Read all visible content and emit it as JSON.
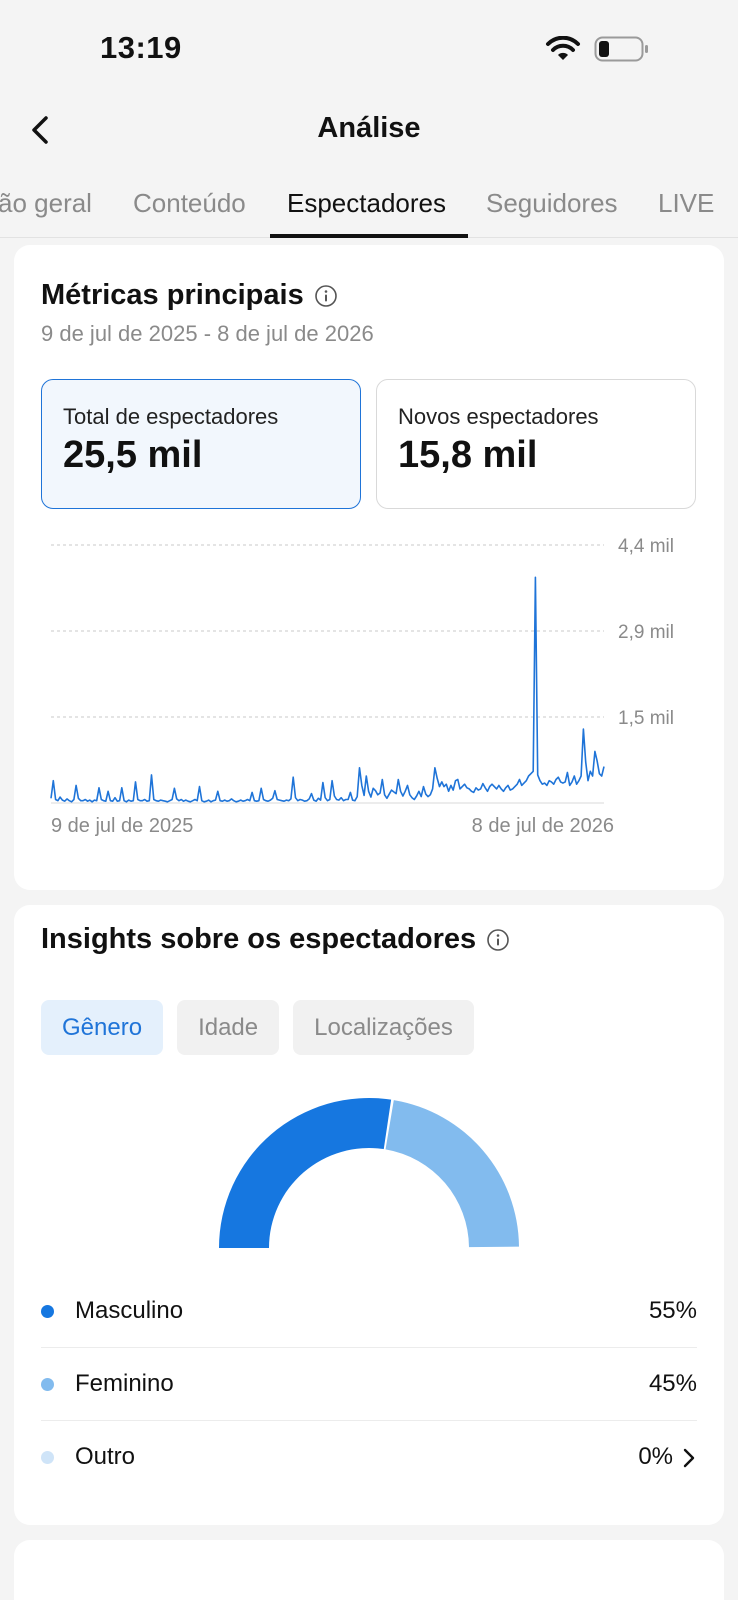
{
  "status_bar": {
    "time": "13:19"
  },
  "header": {
    "title": "Análise"
  },
  "tabs": [
    {
      "label": "ão geral"
    },
    {
      "label": "Conteúdo"
    },
    {
      "label": "Espectadores"
    },
    {
      "label": "Seguidores"
    },
    {
      "label": "LIVE"
    }
  ],
  "metrics": {
    "title": "Métricas principais",
    "date_range": "9 de jul de 2025 - 8 de jul de 2026",
    "total": {
      "label": "Total de espectadores",
      "value": "25,5 mil"
    },
    "new": {
      "label": "Novos espectadores",
      "value": "15,8 mil"
    }
  },
  "chart_data": {
    "type": "line",
    "title": "",
    "series": [
      {
        "color": "#1f74d8",
        "values": [
          80,
          380,
          60,
          40,
          100,
          50,
          30,
          70,
          40,
          20,
          60,
          300,
          80,
          40,
          40,
          60,
          30,
          50,
          20,
          50,
          40,
          260,
          60,
          40,
          30,
          200,
          40,
          30,
          90,
          30,
          40,
          260,
          40,
          20,
          50,
          30,
          40,
          360,
          60,
          40,
          40,
          60,
          30,
          40,
          480,
          60,
          40,
          30,
          50,
          40,
          30,
          20,
          40,
          60,
          250,
          70,
          40,
          60,
          30,
          50,
          30,
          20,
          40,
          60,
          40,
          280,
          40,
          20,
          30,
          50,
          20,
          40,
          50,
          200,
          40,
          30,
          50,
          30,
          40,
          70,
          40,
          20,
          30,
          50,
          30,
          40,
          60,
          40,
          180,
          40,
          30,
          40,
          250,
          60,
          40,
          30,
          50,
          80,
          210,
          60,
          50,
          40,
          30,
          50,
          40,
          70,
          440,
          90,
          40,
          60,
          50,
          30,
          40,
          70,
          160,
          50,
          30,
          80,
          50,
          350,
          90,
          40,
          60,
          380,
          120,
          60,
          50,
          90,
          40,
          60,
          60,
          180,
          50,
          40,
          110,
          600,
          300,
          130,
          460,
          200,
          100,
          250,
          210,
          140,
          170,
          400,
          140,
          80,
          150,
          220,
          190,
          160,
          400,
          200,
          120,
          200,
          300,
          140,
          90,
          60,
          120,
          200,
          110,
          280,
          150,
          110,
          140,
          240,
          600,
          420,
          280,
          360,
          280,
          320,
          200,
          300,
          220,
          380,
          400,
          240,
          280,
          320,
          260,
          240,
          200,
          180,
          260,
          220,
          240,
          330,
          260,
          200,
          280,
          320,
          280,
          240,
          300,
          240,
          200,
          260,
          300,
          220,
          240,
          280,
          320,
          400,
          300,
          340,
          380,
          460,
          500,
          540,
          3850,
          480,
          380,
          320,
          340,
          300,
          380,
          360,
          320,
          400,
          440,
          360,
          340,
          360,
          520,
          300,
          360,
          460,
          320,
          380,
          460,
          1260,
          700,
          380,
          540,
          460,
          880,
          720,
          500,
          460,
          620
        ],
        "min": 0,
        "max": 4400
      }
    ],
    "y_ticks": [
      "4,4 mil",
      "2,9 mil",
      "1,5 mil"
    ],
    "y_tick_values": [
      4400,
      2900,
      1500
    ],
    "x_labels": [
      "9 de jul de 2025",
      "8 de jul de 2026"
    ],
    "grid": "horizontal-dashed"
  },
  "insights": {
    "title": "Insights sobre os espectadores",
    "filters": [
      {
        "label": "Gênero"
      },
      {
        "label": "Idade"
      },
      {
        "label": "Localizações"
      }
    ],
    "gender_chart": {
      "type": "pie",
      "slices": [
        {
          "label": "Masculino",
          "value": 55,
          "color": "#1677e0"
        },
        {
          "label": "Feminino",
          "value": 45,
          "color": "#82bbee"
        },
        {
          "label": "Outro",
          "value": 0,
          "color": "#cfe4f8"
        }
      ]
    },
    "legend": [
      {
        "label": "Masculino",
        "value": "55%",
        "color": "#1677e0"
      },
      {
        "label": "Feminino",
        "value": "45%",
        "color": "#82bbee"
      },
      {
        "label": "Outro",
        "value": "0%",
        "color": "#cfe4f8"
      }
    ]
  }
}
